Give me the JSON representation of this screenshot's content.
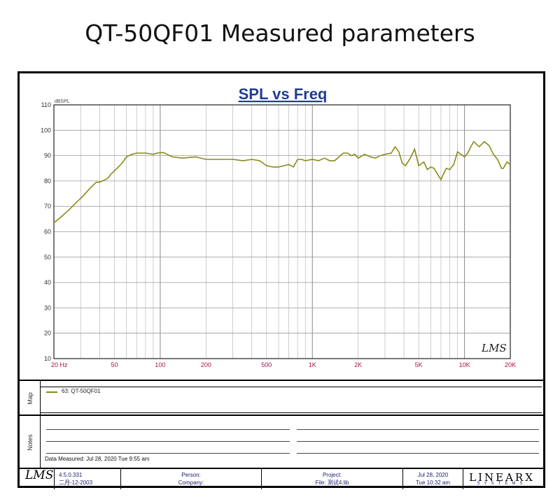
{
  "page": {
    "title": "QT-50QF01 Measured parameters"
  },
  "chart_data": {
    "type": "line",
    "title": "SPL vs Freq",
    "ylabel": "dBSPL",
    "xlabel": "",
    "x_scale": "log",
    "xlim": [
      20,
      20000
    ],
    "ylim": [
      10,
      110
    ],
    "grid": true,
    "y_ticks": [
      10,
      20,
      30,
      40,
      50,
      60,
      70,
      80,
      90,
      100,
      110
    ],
    "x_ticks": [
      {
        "value": 20,
        "label": "20  Hz"
      },
      {
        "value": 50,
        "label": "50"
      },
      {
        "value": 100,
        "label": "100"
      },
      {
        "value": 200,
        "label": "200"
      },
      {
        "value": 500,
        "label": "500"
      },
      {
        "value": 1000,
        "label": "1K"
      },
      {
        "value": 2000,
        "label": "2K"
      },
      {
        "value": 5000,
        "label": "5K"
      },
      {
        "value": 10000,
        "label": "10K"
      },
      {
        "value": 20000,
        "label": "20K"
      }
    ],
    "watermark": "LMS",
    "series": [
      {
        "name": "63: QT-50QF01",
        "color": "#8a8a1a",
        "x": [
          20,
          22,
          25,
          28,
          31,
          35,
          38,
          40,
          45,
          48,
          52,
          56,
          60,
          65,
          70,
          80,
          90,
          95,
          105,
          120,
          140,
          170,
          200,
          250,
          300,
          350,
          400,
          450,
          500,
          550,
          600,
          650,
          700,
          750,
          800,
          850,
          900,
          1000,
          1100,
          1200,
          1300,
          1400,
          1600,
          1700,
          1800,
          1900,
          2000,
          2200,
          2400,
          2600,
          2800,
          3000,
          3300,
          3500,
          3700,
          3900,
          4100,
          4400,
          4700,
          5000,
          5400,
          5700,
          6000,
          6300,
          6600,
          7000,
          7300,
          7600,
          8000,
          8500,
          9000,
          10000,
          10500,
          11000,
          11500,
          12500,
          13500,
          14500,
          15500,
          16500,
          17500,
          18000,
          19000,
          20000
        ],
        "y": [
          63.5,
          65.5,
          68.5,
          71.5,
          74,
          77.5,
          79.5,
          79.5,
          81,
          83,
          85,
          87,
          89.5,
          90.5,
          91,
          91,
          90.5,
          91,
          91.2,
          89.5,
          89,
          89.5,
          88.5,
          88.5,
          88.5,
          88,
          88.5,
          88,
          86,
          85.5,
          85.5,
          86,
          86.5,
          85.5,
          88.5,
          88.5,
          88,
          88.5,
          88,
          89,
          88,
          88,
          91,
          91,
          90,
          90.5,
          89,
          90.5,
          89.5,
          89,
          90,
          90.5,
          91,
          93.5,
          91.5,
          87,
          86,
          89,
          92.5,
          86,
          87.5,
          84.5,
          85.5,
          85,
          83,
          80.5,
          83,
          85,
          84.5,
          86.5,
          91.5,
          89.5,
          91,
          93.5,
          95.5,
          93.5,
          95.5,
          94,
          90.5,
          88.5,
          85,
          85,
          87.5,
          86.5
        ]
      }
    ]
  },
  "map": {
    "tab_label": "Map",
    "legend": "63: QT-50QF01"
  },
  "notes": {
    "tab_label": "Notes",
    "date_measured": "Data Measured: Jul 28, 2020  Tue  9:55 am"
  },
  "footer": {
    "logo": "LMS",
    "version": "4.5.0.331",
    "build_date": "二月-12-2003",
    "person_label": "Person:",
    "company_label": "Company:",
    "project_label": "Project:",
    "file_label": "File: 测试4.lib",
    "date": "Jul 28, 2020",
    "time": "Tue 10:32 am",
    "brand": "LINEARX",
    "brand_sub": "SYSTEMS"
  }
}
